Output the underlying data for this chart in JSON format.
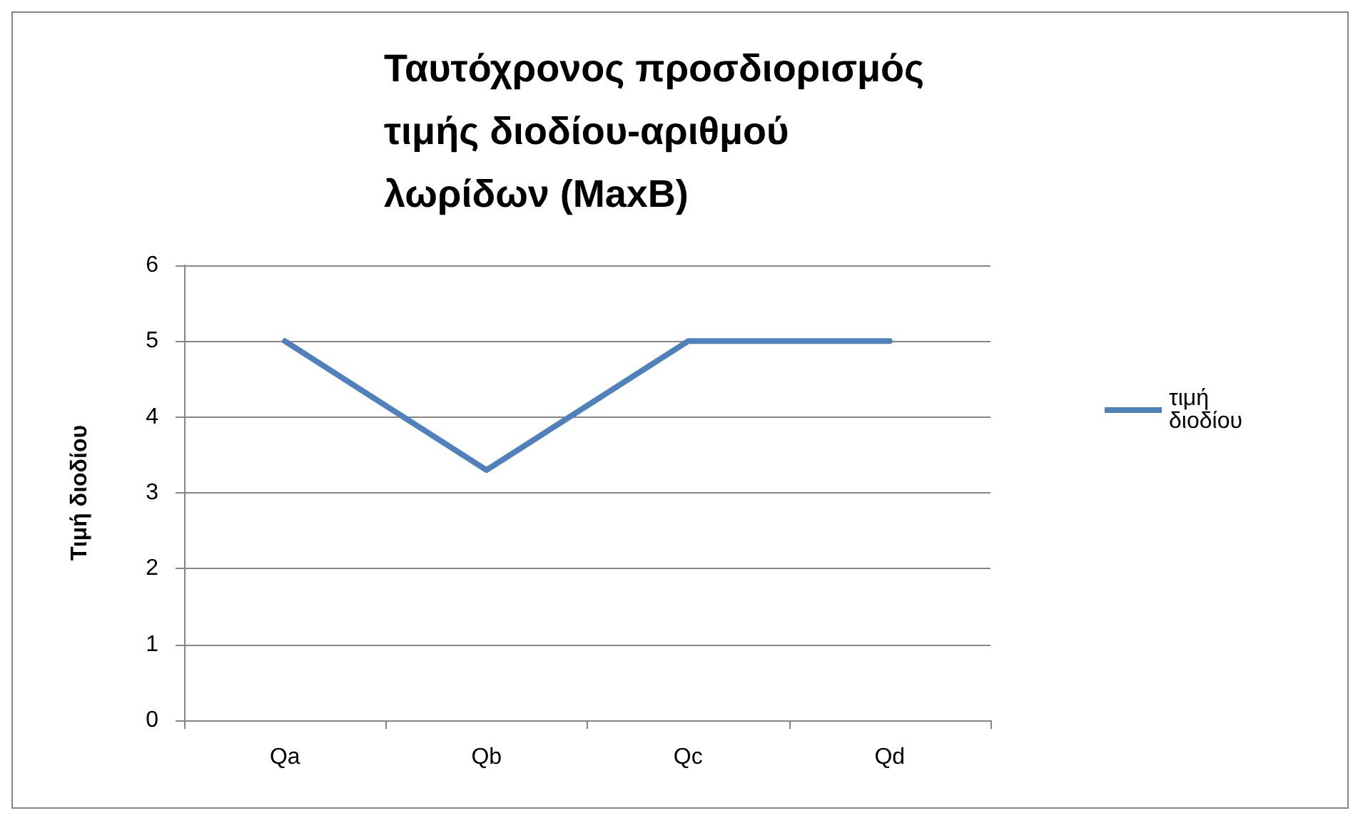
{
  "chart_data": {
    "type": "line",
    "title": "Ταυτόχρονος προσδιορισμός τιμής διοδίου-αριθμού λωρίδων (MaxB)",
    "ylabel": "Τιμή διοδίου",
    "categories": [
      "Qa",
      "Qb",
      "Qc",
      "Qd"
    ],
    "series": [
      {
        "name": "τιμή διοδίου",
        "color": "#4f81bd",
        "values": [
          5,
          3.3,
          5,
          5
        ]
      }
    ],
    "ylim": [
      0,
      6
    ],
    "yticks": [
      0,
      1,
      2,
      3,
      4,
      5,
      6
    ],
    "grid": "y",
    "legend": "right",
    "marker": "none"
  }
}
